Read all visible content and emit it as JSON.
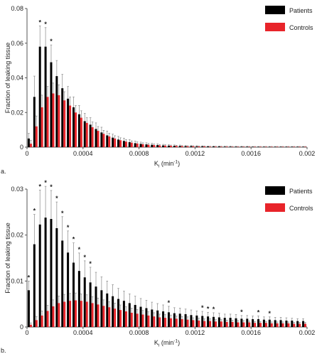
{
  "chart_data": [
    {
      "type": "bar",
      "panel_label": "a.",
      "ylabel": "Fraction of leaking  tissue",
      "xlabel_main": "K",
      "xlabel_sub": "i",
      "xlabel_unit": " (min",
      "xlabel_unit_sup": "-1",
      "xlabel_close": ")",
      "xlim": [
        0,
        0.002
      ],
      "ylim": [
        0,
        0.08
      ],
      "y_ticks": [
        "0",
        "0.02",
        "0.04",
        "0.06",
        "0.08"
      ],
      "x_ticks": [
        "0",
        "0.0004",
        "0.0008",
        "0.0012",
        "0.0016",
        "0.002"
      ],
      "bin_width": 4e-05,
      "legend": {
        "placement": "top-right",
        "entries": [
          "Patients",
          "Controls"
        ]
      },
      "series": [
        {
          "name": "Patients",
          "color": "#000000",
          "values": [
            0.005,
            0.029,
            0.058,
            0.058,
            0.049,
            0.041,
            0.034,
            0.028,
            0.023,
            0.019,
            0.015,
            0.013,
            0.0105,
            0.0085,
            0.0068,
            0.0055,
            0.0044,
            0.0036,
            0.0029,
            0.0023,
            0.0019,
            0.0016,
            0.0014,
            0.0012,
            0.001,
            0.0009,
            0.0008,
            0.0007,
            0.0006,
            0.0006,
            0.0005,
            0.0005,
            0.0004,
            0.0004,
            0.0004,
            0.0003,
            0.0003,
            0.0003,
            0.0003,
            0.0003,
            0.0002,
            0.0002,
            0.0002,
            0.0002,
            0.0002,
            0.0002,
            0.0002,
            0.0002,
            0.0002,
            0.0002
          ],
          "errors": [
            0.003,
            0.012,
            0.012,
            0.011,
            0.01,
            0.009,
            0.008,
            0.007,
            0.006,
            0.005,
            0.0045,
            0.004,
            0.0035,
            0.003,
            0.0025,
            0.002,
            0.0018,
            0.0016,
            0.0014,
            0.0012,
            0.001,
            0.0009,
            0.0008,
            0.0007,
            0.0006,
            0.0006,
            0.0005,
            0.0005,
            0.0004,
            0.0004,
            0.0004,
            0.0003,
            0.0003,
            0.0003,
            0.0003,
            0.0003,
            0.0003,
            0.0002,
            0.0002,
            0.0002,
            0.0002,
            0.0002,
            0.0002,
            0.0002,
            0.0002,
            0.0002,
            0.0002,
            0.0002,
            0.0002,
            0.0002
          ]
        },
        {
          "name": "Controls",
          "color": "#e8242a",
          "values": [
            0.002,
            0.012,
            0.023,
            0.029,
            0.031,
            0.03,
            0.027,
            0.024,
            0.02,
            0.017,
            0.014,
            0.0115,
            0.0094,
            0.0077,
            0.0062,
            0.005,
            0.004,
            0.0032,
            0.0026,
            0.0021,
            0.0017,
            0.0014,
            0.0012,
            0.001,
            0.0009,
            0.0008,
            0.0007,
            0.0006,
            0.0005,
            0.0005,
            0.0004,
            0.0004,
            0.0003,
            0.0003,
            0.0003,
            0.0003,
            0.0002,
            0.0002,
            0.0002,
            0.0002,
            0.0002,
            0.0002,
            0.0002,
            0.0002,
            0.0002,
            0.0002,
            0.0002,
            0.0002,
            0.0002,
            0.0002
          ],
          "errors": [
            0.002,
            0.006,
            0.007,
            0.006,
            0.006,
            0.006,
            0.005,
            0.005,
            0.004,
            0.004,
            0.003,
            0.003,
            0.0025,
            0.002,
            0.0018,
            0.0016,
            0.0014,
            0.0012,
            0.001,
            0.0009,
            0.0008,
            0.0007,
            0.0006,
            0.0005,
            0.0005,
            0.0004,
            0.0004,
            0.0003,
            0.0003,
            0.0003,
            0.0003,
            0.0003,
            0.0002,
            0.0002,
            0.0002,
            0.0002,
            0.0002,
            0.0002,
            0.0002,
            0.0002,
            0.0002,
            0.0002,
            0.0002,
            0.0002,
            0.0002,
            0.0002,
            0.0002,
            0.0002,
            0.0002,
            0.0002
          ]
        }
      ],
      "significance": {
        "symbol": "*",
        "bins": [
          2,
          3,
          4
        ]
      }
    },
    {
      "type": "bar",
      "panel_label": "b.",
      "ylabel": "Fraction of leaking tissue",
      "xlabel_main": "K",
      "xlabel_sub": "i",
      "xlabel_unit": " (min",
      "xlabel_unit_sup": "-1",
      "xlabel_close": ")",
      "xlim": [
        0,
        0.002
      ],
      "ylim": [
        0,
        0.03
      ],
      "y_ticks": [
        "0",
        "0.01",
        "0.02",
        "0.03"
      ],
      "x_ticks": [
        "0",
        "0.0004",
        "0.0008",
        "0.0012",
        "0.0016",
        "0.002"
      ],
      "bin_width": 4e-05,
      "legend": {
        "placement": "top-right",
        "entries": [
          "Patients",
          "Controls"
        ]
      },
      "series": [
        {
          "name": "Patients",
          "color": "#000000",
          "values": [
            0.008,
            0.018,
            0.0223,
            0.0238,
            0.0235,
            0.0215,
            0.0188,
            0.0162,
            0.014,
            0.0122,
            0.0108,
            0.0097,
            0.0088,
            0.008,
            0.0073,
            0.0067,
            0.0061,
            0.0057,
            0.0052,
            0.0048,
            0.0044,
            0.0041,
            0.0038,
            0.0036,
            0.0034,
            0.0032,
            0.003,
            0.0029,
            0.0028,
            0.0026,
            0.0025,
            0.0024,
            0.0023,
            0.0022,
            0.0021,
            0.002,
            0.002,
            0.0019,
            0.0018,
            0.0018,
            0.0017,
            0.0017,
            0.0016,
            0.0016,
            0.0015,
            0.0015,
            0.0014,
            0.0014,
            0.0013,
            0.0013
          ],
          "errors": [
            0.002,
            0.0065,
            0.0075,
            0.0068,
            0.0062,
            0.0057,
            0.0052,
            0.0047,
            0.0043,
            0.0039,
            0.0036,
            0.0033,
            0.0031,
            0.0029,
            0.0027,
            0.0025,
            0.0023,
            0.0021,
            0.002,
            0.0019,
            0.0018,
            0.0017,
            0.0016,
            0.0015,
            0.0014,
            0.0013,
            0.0012,
            0.0012,
            0.0011,
            0.0011,
            0.001,
            0.001,
            0.0009,
            0.0009,
            0.0009,
            0.0008,
            0.0008,
            0.0008,
            0.0007,
            0.0007,
            0.0007,
            0.0007,
            0.0006,
            0.0006,
            0.0006,
            0.0006,
            0.0006,
            0.0005,
            0.0005,
            0.0005
          ]
        },
        {
          "name": "Controls",
          "color": "#e8242a",
          "values": [
            0.0005,
            0.0015,
            0.0025,
            0.0035,
            0.0045,
            0.0052,
            0.0055,
            0.0057,
            0.0058,
            0.0057,
            0.0055,
            0.0052,
            0.0049,
            0.0046,
            0.0043,
            0.004,
            0.0037,
            0.0034,
            0.0031,
            0.0029,
            0.0027,
            0.0025,
            0.0023,
            0.0021,
            0.002,
            0.0019,
            0.0018,
            0.0017,
            0.0016,
            0.0015,
            0.0014,
            0.0013,
            0.0013,
            0.0012,
            0.0012,
            0.0011,
            0.0011,
            0.001,
            0.001,
            0.001,
            0.0009,
            0.0009,
            0.0009,
            0.0008,
            0.0008,
            0.0008,
            0.0008,
            0.0007,
            0.0007,
            0.0007
          ],
          "errors": [
            0.0004,
            0.0008,
            0.001,
            0.0012,
            0.0014,
            0.0015,
            0.0016,
            0.0016,
            0.0016,
            0.0015,
            0.0015,
            0.0014,
            0.0014,
            0.0013,
            0.0012,
            0.0012,
            0.0011,
            0.001,
            0.001,
            0.0009,
            0.0009,
            0.0008,
            0.0008,
            0.0007,
            0.0007,
            0.0007,
            0.0006,
            0.0006,
            0.0006,
            0.0005,
            0.0005,
            0.0005,
            0.0005,
            0.0004,
            0.0004,
            0.0004,
            0.0004,
            0.0004,
            0.0004,
            0.0003,
            0.0003,
            0.0003,
            0.0003,
            0.0003,
            0.0003,
            0.0003,
            0.0003,
            0.0003,
            0.0003,
            0.0003
          ]
        }
      ],
      "significance": {
        "symbol": "*",
        "bins": [
          0,
          1,
          2,
          3,
          4,
          5,
          6,
          7,
          8,
          9,
          10,
          11,
          25,
          31,
          32,
          33,
          38,
          41,
          43
        ]
      }
    }
  ]
}
